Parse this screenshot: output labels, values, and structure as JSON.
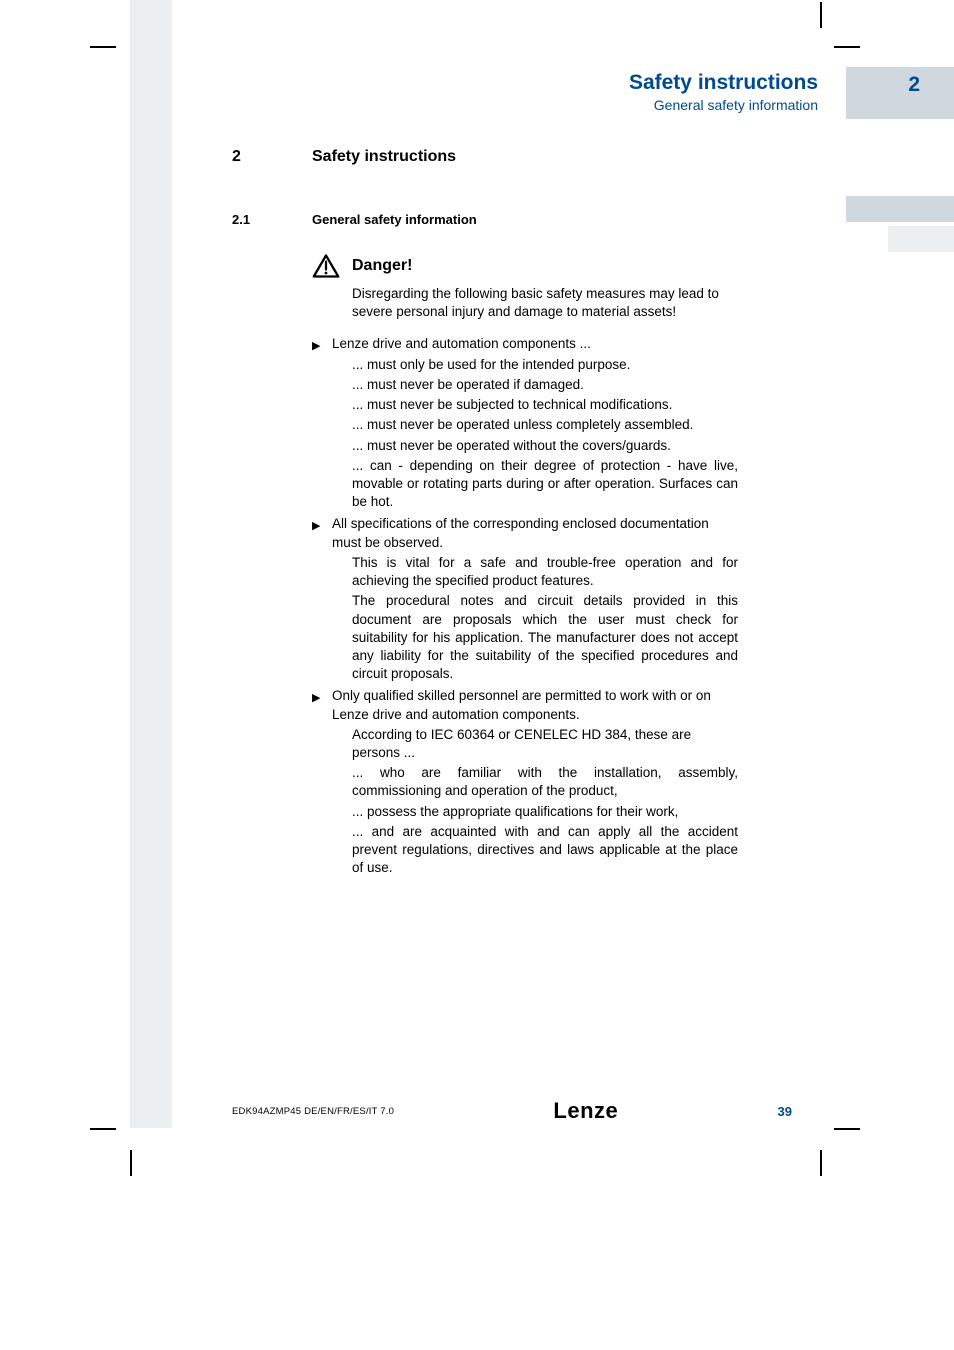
{
  "colors": {
    "brand_blue": "#004a8f",
    "header_box_bg": "#cfd8df",
    "left_col_bg": "#eceff1",
    "page_bg": "#ffffff",
    "text": "#000000"
  },
  "typography": {
    "title_pt": 21,
    "section_pt": 16,
    "subsection_pt": 13,
    "body_pt": 13.5,
    "footer_small_pt": 9.5,
    "footer_page_pt": 13,
    "logo_pt": 22
  },
  "header": {
    "title": "Safety instructions",
    "subtitle": "General safety information",
    "chapter_number": "2"
  },
  "section": {
    "number": "2",
    "title": "Safety instructions"
  },
  "subsection": {
    "number": "2.1",
    "title": "General safety information"
  },
  "danger": {
    "title": "Danger!",
    "body": "Disregarding the following basic safety measures may lead to severe personal injury and damage to material assets!"
  },
  "bullets": [
    {
      "lead": "Lenze drive and automation components ...",
      "subs": [
        "... must only be used for the  intended purpose.",
        "... must never be operated if  damaged.",
        "... must never be subjected to technical modifications.",
        "... must never be operated unless completely  assembled.",
        "... must never be operated without the  covers/guards.",
        "... can - depending on their degree of protection - have live, movable or rotating parts during or after operation. Surfaces can be hot."
      ],
      "justify_last": true
    },
    {
      "lead": "All specifications of the corresponding enclosed documentation must be observed.",
      "subs": [
        "This is vital for a safe and trouble-free operation and for achieving the specified product features.",
        "The procedural notes and circuit details provided in this document are proposals which the user must check for suitability for his application. The manufacturer does not accept any liability for the suitability of the specified procedures and circuit proposals."
      ],
      "justify_last": false,
      "justify_all_subs": true
    },
    {
      "lead": "Only qualified skilled personnel are permitted to work with or on Lenze drive and automation components.",
      "subs": [
        "According to IEC 60364 or CENELEC HD 384, these are persons ...",
        "... who are familiar with the installation, assembly, commissioning and operation of the product,",
        "... possess the appropriate qualifications for their work,",
        "... and are acquainted with and can apply all the accident prevent regulations, directives and laws applicable at the place of use."
      ],
      "justify_indices": [
        1,
        3
      ]
    }
  ],
  "footer": {
    "doc_code": "EDK94AZMP45  DE/EN/FR/ES/IT   7.0",
    "logo_text": "Lenze",
    "page_number": "39"
  }
}
